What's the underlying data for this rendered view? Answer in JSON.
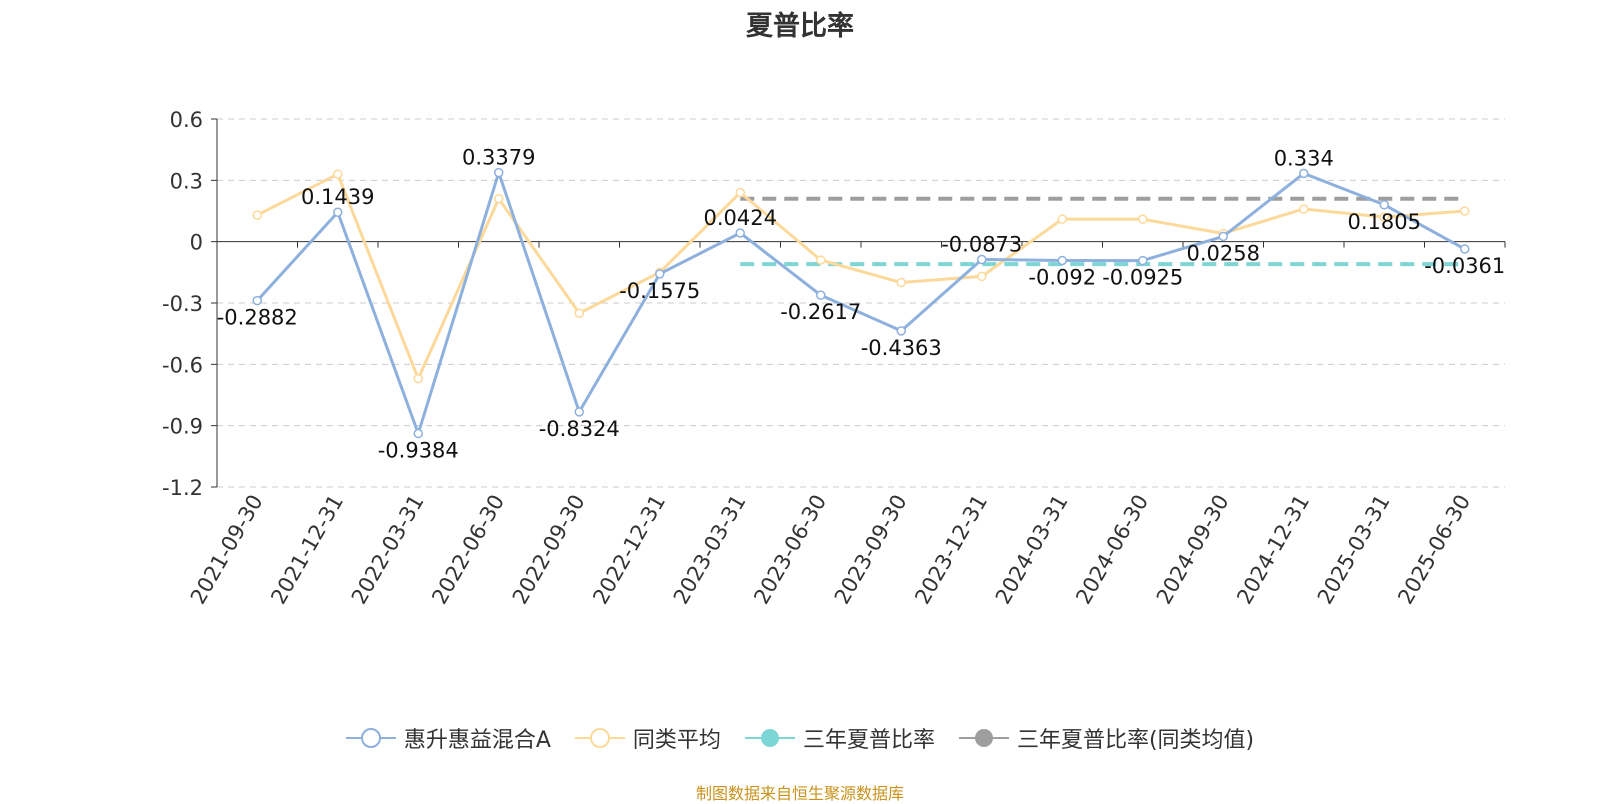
{
  "chart_data": {
    "type": "line",
    "title": "夏普比率",
    "categories": [
      "2021-09-30",
      "2021-12-31",
      "2022-03-31",
      "2022-06-30",
      "2022-09-30",
      "2022-12-31",
      "2023-03-31",
      "2023-06-30",
      "2023-09-30",
      "2023-12-31",
      "2024-03-31",
      "2024-06-30",
      "2024-09-30",
      "2024-12-31",
      "2025-03-31",
      "2025-06-30"
    ],
    "yticks": [
      "0.6",
      "0.3",
      "0",
      "-0.3",
      "-0.6",
      "-0.9",
      "-1.2"
    ],
    "ylim": [
      -1.2,
      0.6
    ],
    "grid": true,
    "series": [
      {
        "name": "惠升惠益混合A",
        "color": "#8eb0dd",
        "values": [
          -0.2882,
          0.1439,
          -0.9384,
          0.3379,
          -0.8324,
          -0.1575,
          0.0424,
          -0.2617,
          -0.4363,
          -0.0873,
          -0.092,
          -0.0925,
          0.0258,
          0.334,
          0.1805,
          -0.0361
        ],
        "labels": [
          "-0.2882",
          "0.1439",
          "-0.9384",
          "0.3379",
          "-0.8324",
          "-0.1575",
          "0.0424",
          "-0.2617",
          "-0.4363",
          "-0.0873",
          "-0.092",
          "-0.0925",
          "0.0258",
          "0.334",
          "0.1805",
          "-0.0361"
        ]
      },
      {
        "name": "同类平均",
        "color": "#fcd99a",
        "values": [
          0.13,
          0.33,
          -0.67,
          0.21,
          -0.35,
          -0.15,
          0.24,
          -0.09,
          -0.2,
          -0.17,
          0.11,
          0.11,
          0.04,
          0.16,
          0.12,
          0.15
        ]
      },
      {
        "name": "三年夏普比率",
        "color": "#7dd6d6",
        "dashed": true,
        "from_category": "2023-03-31",
        "value": -0.11
      },
      {
        "name": "三年夏普比率(同类均值)",
        "color": "#9e9e9e",
        "dashed": true,
        "from_category": "2023-03-31",
        "value": 0.21
      }
    ],
    "legend_position": "bottom"
  },
  "footer": {
    "source": "制图数据来自恒生聚源数据库"
  }
}
